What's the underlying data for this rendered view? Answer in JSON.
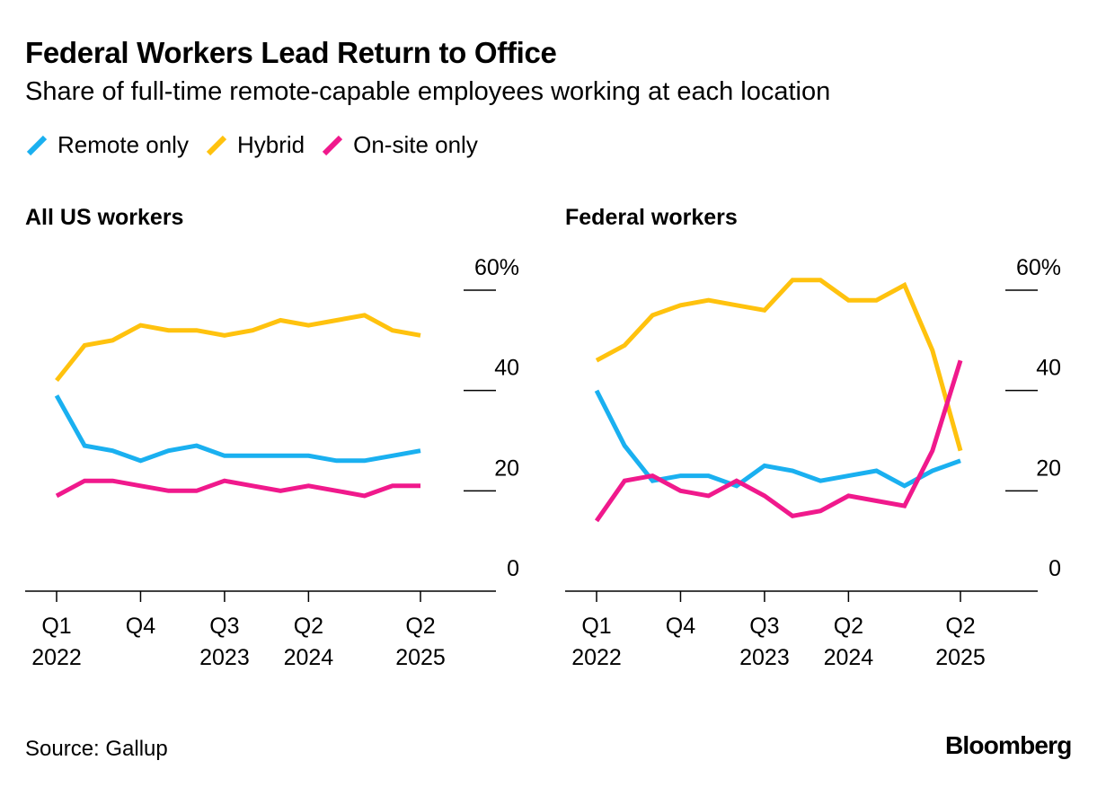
{
  "header": {
    "title": "Federal Workers Lead Return to Office",
    "subtitle": "Share of full-time remote-capable employees working at each location"
  },
  "legend": [
    {
      "label": "Remote only",
      "color": "#1ab0f0"
    },
    {
      "label": "Hybrid",
      "color": "#ffc20e"
    },
    {
      "label": "On-site only",
      "color": "#f0198c"
    }
  ],
  "footer": {
    "source": "Source: Gallup",
    "logo": "Bloomberg"
  },
  "chart_data": [
    {
      "type": "line",
      "title": "All US workers",
      "x": [
        "Q1 2022",
        "Q2 2022",
        "Q3 2022",
        "Q4 2022",
        "Q1 2023",
        "Q2 2023",
        "Q3 2023",
        "Q4 2023",
        "Q1 2024",
        "Q2 2024",
        "Q3 2024",
        "Q4 2024",
        "Q1 2025",
        "Q2 2025"
      ],
      "xticks": [
        {
          "index": 0,
          "label": "Q1",
          "sublabel": "2022"
        },
        {
          "index": 3,
          "label": "Q4",
          "sublabel": ""
        },
        {
          "index": 6,
          "label": "Q3",
          "sublabel": "2023"
        },
        {
          "index": 9,
          "label": "Q2",
          "sublabel": "2024"
        },
        {
          "index": 13,
          "label": "Q2",
          "sublabel": "2025"
        }
      ],
      "ylim": [
        0,
        60
      ],
      "yticks": [
        "60%",
        "40",
        "20",
        "0"
      ],
      "ytick_values": [
        60,
        40,
        20,
        0
      ],
      "series": [
        {
          "name": "Hybrid",
          "color": "#ffc20e",
          "values": [
            42,
            49,
            50,
            53,
            52,
            52,
            51,
            52,
            54,
            53,
            54,
            55,
            52,
            51
          ]
        },
        {
          "name": "Remote only",
          "color": "#1ab0f0",
          "values": [
            39,
            29,
            28,
            26,
            28,
            29,
            27,
            27,
            27,
            27,
            26,
            26,
            27,
            28
          ]
        },
        {
          "name": "On-site only",
          "color": "#f0198c",
          "values": [
            19,
            22,
            22,
            21,
            20,
            20,
            22,
            21,
            20,
            21,
            20,
            19,
            21,
            21
          ]
        }
      ]
    },
    {
      "type": "line",
      "title": "Federal workers",
      "x": [
        "Q1 2022",
        "Q2 2022",
        "Q3 2022",
        "Q4 2022",
        "Q1 2023",
        "Q2 2023",
        "Q3 2023",
        "Q4 2023",
        "Q1 2024",
        "Q2 2024",
        "Q3 2024",
        "Q4 2024",
        "Q1 2025",
        "Q2 2025"
      ],
      "xticks": [
        {
          "index": 0,
          "label": "Q1",
          "sublabel": "2022"
        },
        {
          "index": 3,
          "label": "Q4",
          "sublabel": ""
        },
        {
          "index": 6,
          "label": "Q3",
          "sublabel": "2023"
        },
        {
          "index": 9,
          "label": "Q2",
          "sublabel": "2024"
        },
        {
          "index": 13,
          "label": "Q2",
          "sublabel": "2025"
        }
      ],
      "ylim": [
        0,
        60
      ],
      "yticks": [
        "60%",
        "40",
        "20",
        "0"
      ],
      "ytick_values": [
        60,
        40,
        20,
        0
      ],
      "series": [
        {
          "name": "Hybrid",
          "color": "#ffc20e",
          "values": [
            46,
            49,
            55,
            57,
            58,
            57,
            56,
            62,
            62,
            58,
            58,
            61,
            48,
            28
          ]
        },
        {
          "name": "Remote only",
          "color": "#1ab0f0",
          "values": [
            40,
            29,
            22,
            23,
            23,
            21,
            25,
            24,
            22,
            23,
            24,
            21,
            24,
            26
          ]
        },
        {
          "name": "On-site only",
          "color": "#f0198c",
          "values": [
            14,
            22,
            23,
            20,
            19,
            22,
            19,
            15,
            16,
            19,
            18,
            17,
            28,
            46
          ]
        }
      ]
    }
  ]
}
